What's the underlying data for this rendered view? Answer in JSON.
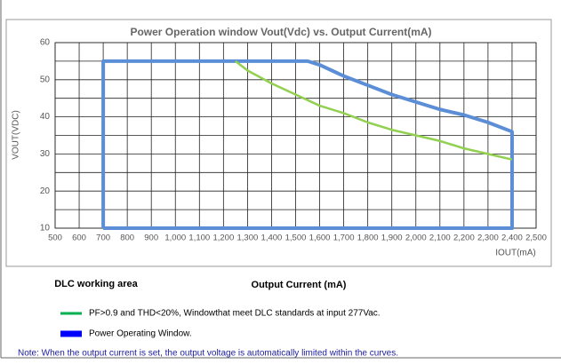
{
  "chart_data": {
    "type": "line",
    "title": "Power Operation window Vout(Vdc) vs. Output Current(mA)",
    "y_label": "VOUT(VDC)",
    "x_label": "IOUT(mA)",
    "xlim": [
      500,
      2500
    ],
    "xticks": [
      500,
      600,
      700,
      800,
      900,
      {
        "value": 1000,
        "label": "1,000"
      },
      {
        "value": 1100,
        "label": "1,100"
      },
      {
        "value": 1200,
        "label": "1,200"
      },
      {
        "value": 1300,
        "label": "1,300"
      },
      {
        "value": 1400,
        "label": "1,400"
      },
      {
        "value": 1500,
        "label": "1,500"
      },
      {
        "value": 1600,
        "label": "1,600"
      },
      {
        "value": 1700,
        "label": "1,700"
      },
      {
        "value": 1800,
        "label": "1,800"
      },
      {
        "value": 1900,
        "label": "1,900"
      },
      {
        "value": 2000,
        "label": "2,000"
      },
      {
        "value": 2100,
        "label": "2,100"
      },
      {
        "value": 2200,
        "label": "2,200"
      },
      {
        "value": 2300,
        "label": "2,300"
      },
      {
        "value": 2400,
        "label": "2,400"
      },
      {
        "value": 2500,
        "label": "2,500"
      }
    ],
    "ylim": [
      10,
      60
    ],
    "yticks": [
      10,
      20,
      30,
      40,
      50,
      60
    ],
    "y_minor_grid": [
      15,
      25,
      35,
      45,
      55
    ],
    "grid": true,
    "series": [
      {
        "name": "PF>0.9 and THD<20%, Windowthat meet DLC standards at input 277Vac.",
        "color": "#92d050",
        "legend_color": "#00b050",
        "x": [
          1250,
          1300,
          1400,
          1500,
          1600,
          1700,
          1800,
          1900,
          2000,
          2100,
          2200,
          2300,
          2400
        ],
        "values": [
          55,
          52.5,
          49,
          46,
          43,
          41,
          38.5,
          36.5,
          35,
          33.5,
          31.5,
          30,
          28.5
        ]
      },
      {
        "name": "Power Operating Window.",
        "color": "#5b8ed6",
        "legend_color": "#0000ff",
        "x": [
          700,
          700,
          1550,
          1600,
          1700,
          1800,
          1900,
          2000,
          2100,
          2200,
          2300,
          2400,
          2400,
          700
        ],
        "values": [
          10,
          55,
          55,
          54,
          51,
          48.5,
          46,
          44,
          42,
          40.5,
          38.5,
          36,
          10,
          10
        ]
      }
    ],
    "annotations": [
      "DLC working area",
      "Output Current (mA)"
    ],
    "note": "Note: When the output current is set, the output voltage is automatically limited within the curves."
  }
}
